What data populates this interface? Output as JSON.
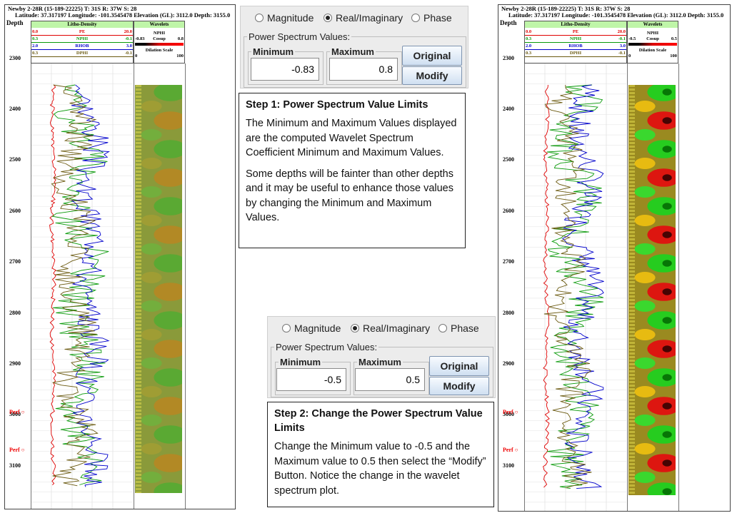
{
  "log_header": {
    "well": "Newby 2-28R (15-189-22225) T: 31S R: 37W S: 28",
    "location": "Latitude: 37.317197 Longitude: -101.3545478 Elevation (GL): 3112.0 Depth: 3155.0",
    "depth_label": "Depth"
  },
  "litho_track": {
    "title": "Litho-Density",
    "curves": [
      {
        "name": "PE",
        "min": "0.0",
        "max": "20.0",
        "color": "#e00000"
      },
      {
        "name": "NPHI",
        "min": "0.3",
        "max": "-0.1",
        "color": "#0a9a0a"
      },
      {
        "name": "RHOB",
        "min": "2.0",
        "max": "3.0",
        "color": "#0000cc"
      },
      {
        "name": "DPHI",
        "min": "0.3",
        "max": "-0.1",
        "color": "#6b5a10"
      }
    ]
  },
  "wavelet_track": {
    "title": "Wavelets",
    "curve": "NPHI",
    "label": "Cosup",
    "dilation_label": "Dilation Scale",
    "dilation_min": "0",
    "dilation_max": "100",
    "left_min": "-0.83",
    "left_max": "0.8",
    "right_min": "-0.5",
    "right_max": "0.5"
  },
  "depth_ticks": [
    "2300",
    "2400",
    "2500",
    "2600",
    "2700",
    "2800",
    "2900",
    "3000",
    "3100"
  ],
  "perf_label": "Perf",
  "panel1": {
    "radio_options": [
      "Magnitude",
      "Real/Imaginary",
      "Phase"
    ],
    "selected": "Real/Imaginary",
    "group_title": "Power Spectrum Values:",
    "min_label": "Minimum",
    "max_label": "Maximum",
    "min_value": "-0.83",
    "max_value": "0.8",
    "original_button": "Original",
    "modify_button": "Modify"
  },
  "panel2": {
    "radio_options": [
      "Magnitude",
      "Real/Imaginary",
      "Phase"
    ],
    "selected": "Real/Imaginary",
    "group_title": "Power Spectrum Values:",
    "min_label": "Minimum",
    "max_label": "Maximum",
    "min_value": "-0.5",
    "max_value": "0.5",
    "original_button": "Original",
    "modify_button": "Modify"
  },
  "step1": {
    "heading": "Step 1: Power Spectrum Value Limits",
    "para1": "The Minimum and Maximum Values displayed are the computed Wavelet Spectrum Coefficient Minimum and Maximum Values.",
    "para2": "Some depths will be fainter than other depths and it may be useful to enhance those values by changing the Minimum and Maximum Values."
  },
  "step2": {
    "heading": "Step 2: Change the Power Spectrum Value Limits",
    "para1": "Change the Minimum value to -0.5 and the Maximum value to 0.5 then select the “Modify” Button. Notice the change in the wavelet spectrum plot."
  }
}
